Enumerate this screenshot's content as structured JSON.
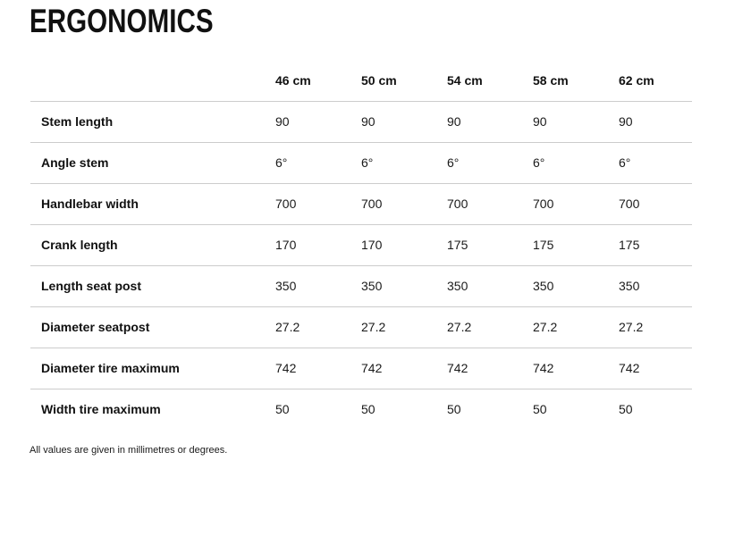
{
  "page": {
    "title": "ERGONOMICS",
    "footnote": "All values are given in millimetres or degrees."
  },
  "colors": {
    "text": "#111111",
    "divider": "#cccccc",
    "background": "#ffffff"
  },
  "table": {
    "size_headers": [
      "46 cm",
      "50 cm",
      "54 cm",
      "58 cm",
      "62 cm"
    ],
    "rows": [
      {
        "label": "Stem length",
        "values": [
          "90",
          "90",
          "90",
          "90",
          "90"
        ]
      },
      {
        "label": "Angle stem",
        "values": [
          "6°",
          "6°",
          "6°",
          "6°",
          "6°"
        ]
      },
      {
        "label": "Handlebar width",
        "values": [
          "700",
          "700",
          "700",
          "700",
          "700"
        ]
      },
      {
        "label": "Crank length",
        "values": [
          "170",
          "170",
          "175",
          "175",
          "175"
        ]
      },
      {
        "label": "Length seat post",
        "values": [
          "350",
          "350",
          "350",
          "350",
          "350"
        ]
      },
      {
        "label": "Diameter seatpost",
        "values": [
          "27.2",
          "27.2",
          "27.2",
          "27.2",
          "27.2"
        ]
      },
      {
        "label": "Diameter tire maximum",
        "values": [
          "742",
          "742",
          "742",
          "742",
          "742"
        ]
      },
      {
        "label": "Width tire maximum",
        "values": [
          "50",
          "50",
          "50",
          "50",
          "50"
        ]
      }
    ]
  }
}
